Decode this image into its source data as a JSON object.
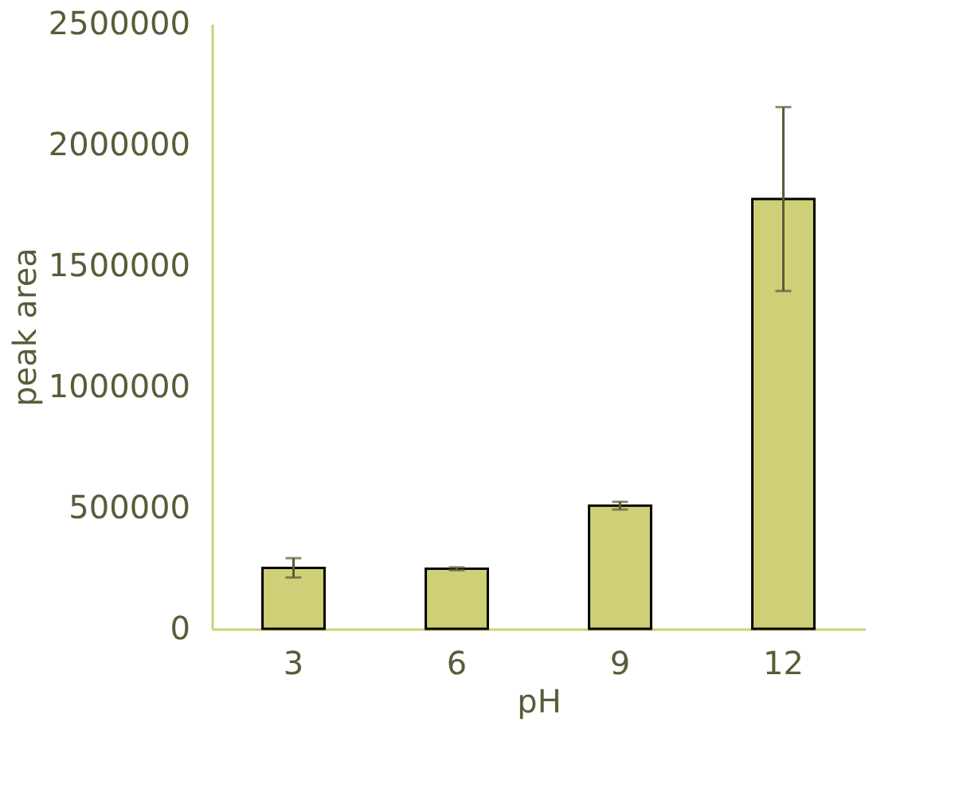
{
  "chart_data": {
    "type": "bar",
    "xlabel": "pH",
    "ylabel": "peak area",
    "categories": [
      "3",
      "6",
      "9",
      "12"
    ],
    "values": [
      252000,
      248000,
      509000,
      1776000
    ],
    "errors": [
      40000,
      6000,
      16000,
      380000
    ],
    "color": "#cfcf77",
    "ylim": [
      0,
      2500000
    ],
    "yticks": [
      0,
      500000,
      1000000,
      1500000,
      2000000,
      2500000
    ],
    "grid": false
  }
}
